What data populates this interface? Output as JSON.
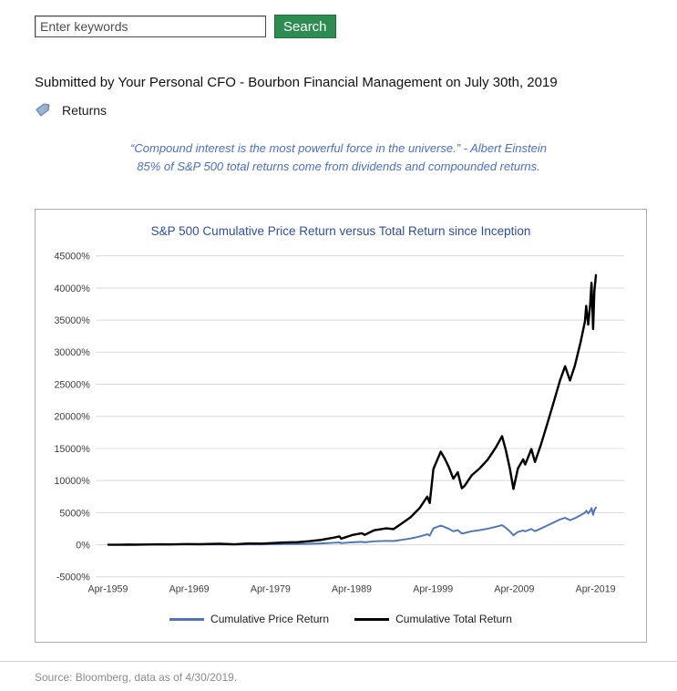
{
  "search": {
    "placeholder": "Enter keywords",
    "button_label": "Search",
    "button_color": "#2d8c51"
  },
  "byline": "Submitted by Your Personal CFO - Bourbon Financial Management on July 30th, 2019",
  "tags": {
    "label": "Returns",
    "icon": "tag-icon",
    "icon_color": "#9db3d4"
  },
  "quote": {
    "line1": "“Compound interest is the most powerful force in the universe.” - Albert Einstein",
    "line2": "85% of S&P 500 total returns come from dividends and compounded returns.",
    "color": "#4a6fc4"
  },
  "chart_data": {
    "type": "line",
    "title": "S&P 500 Cumulative Price Return versus Total Return since Inception",
    "title_color": "#2d4f9e",
    "grid": true,
    "legend_position": "bottom",
    "xlim": [
      1957.8,
      2022.8
    ],
    "ylim": [
      -5000,
      45000
    ],
    "y_ticks": [
      45000,
      40000,
      35000,
      30000,
      25000,
      20000,
      15000,
      10000,
      5000,
      0,
      -5000
    ],
    "y_tick_labels": [
      "45000%",
      "40000%",
      "35000%",
      "30000%",
      "25000%",
      "20000%",
      "15000%",
      "10000%",
      "5000%",
      "0%",
      "-5000%"
    ],
    "x_ticks": [
      1959.25,
      1969.25,
      1979.25,
      1989.25,
      1999.25,
      2009.25,
      2019.25
    ],
    "x_tick_labels": [
      "Apr-1959",
      "Apr-1969",
      "Apr-1979",
      "Apr-1989",
      "Apr-1999",
      "Apr-2009",
      "Apr-2019"
    ],
    "x": [
      1959.3,
      1960.5,
      1961.9,
      1962.5,
      1964,
      1965.8,
      1966.8,
      1968.9,
      1970.5,
      1972.9,
      1974.8,
      1976.5,
      1978.2,
      1980.9,
      1982.6,
      1984,
      1985.5,
      1987,
      1987.75,
      1987.95,
      1989.3,
      1990.5,
      1990.85,
      1992,
      1993.5,
      1994.4,
      1995.5,
      1996.5,
      1997.6,
      1998.55,
      1998.85,
      1999.3,
      2000.2,
      2000.7,
      2001.2,
      2001.75,
      2002.3,
      2002.8,
      2003.15,
      2004,
      2005,
      2006,
      2007,
      2007.75,
      2008.2,
      2008.7,
      2009.15,
      2009.7,
      2010.35,
      2010.6,
      2011.35,
      2011.8,
      2012.5,
      2013.3,
      2014.1,
      2014.9,
      2015.5,
      2016.1,
      2016.7,
      2017.4,
      2017.95,
      2018.1,
      2018.35,
      2018.6,
      2018.75,
      2018.95,
      2019.1,
      2019.3
    ],
    "series": [
      {
        "name": "Cumulative Price Return",
        "color": "#4f74b8",
        "stroke_width": 2,
        "values": [
          0,
          3,
          18,
          6,
          30,
          42,
          28,
          55,
          38,
          70,
          25,
          62,
          58,
          105,
          115,
          150,
          205,
          300,
          355,
          250,
          390,
          450,
          385,
          545,
          610,
          580,
          790,
          980,
          1280,
          1650,
          1420,
          2550,
          3000,
          2750,
          2480,
          2100,
          2280,
          1750,
          1820,
          2100,
          2280,
          2500,
          2800,
          3050,
          2650,
          2100,
          1480,
          2020,
          2230,
          2090,
          2460,
          2120,
          2520,
          3000,
          3480,
          3950,
          4200,
          3830,
          4130,
          4600,
          5000,
          5300,
          4870,
          5300,
          5700,
          4650,
          5400,
          5800
        ]
      },
      {
        "name": "Cumulative Total Return",
        "color": "#000000",
        "stroke_width": 2.5,
        "values": [
          0,
          5,
          25,
          10,
          45,
          70,
          50,
          110,
          80,
          160,
          70,
          190,
          180,
          345,
          395,
          555,
          760,
          1100,
          1300,
          950,
          1500,
          1800,
          1550,
          2250,
          2550,
          2450,
          3400,
          4300,
          5700,
          7500,
          6500,
          11800,
          14500,
          13400,
          12100,
          10300,
          11300,
          8800,
          9200,
          10800,
          11900,
          13300,
          15200,
          16900,
          14800,
          11900,
          8700,
          11900,
          13300,
          12500,
          14900,
          12900,
          15500,
          18800,
          22200,
          25700,
          27800,
          25600,
          27900,
          31500,
          34800,
          37200,
          34300,
          37600,
          40800,
          33600,
          39500,
          42000
        ]
      }
    ]
  },
  "footer": {
    "source": "Source: Bloomberg, data as of 4/30/2019."
  }
}
